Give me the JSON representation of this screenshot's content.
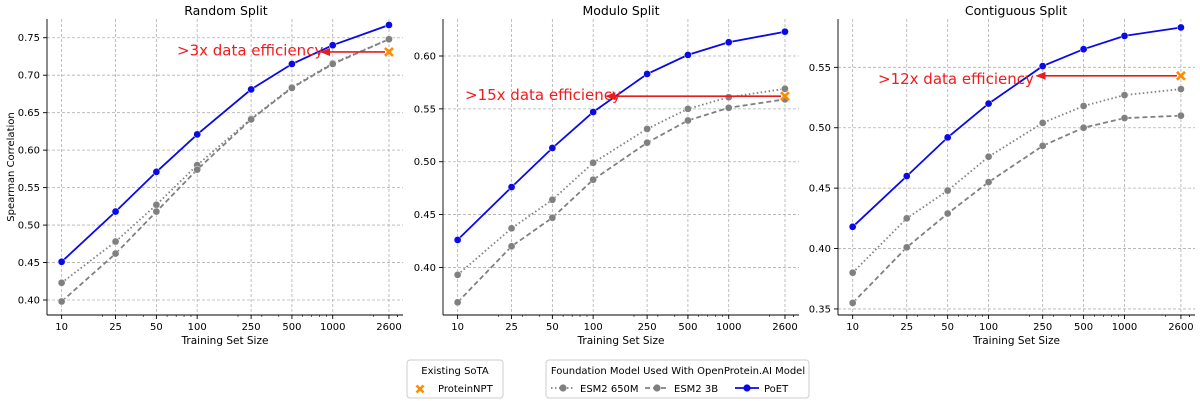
{
  "chart_data": [
    {
      "type": "line",
      "title": "Random Split",
      "xlabel": "Training Set Size",
      "ylabel": "Spearman Correlation",
      "xscale": "log",
      "x": [
        10,
        25,
        50,
        100,
        250,
        500,
        1000,
        2600
      ],
      "xticklabels": [
        "10",
        "25",
        "50",
        "100",
        "250",
        "500",
        "1000",
        "2600"
      ],
      "ylim": [
        0.38,
        0.775
      ],
      "yticks": [
        0.4,
        0.45,
        0.5,
        0.55,
        0.6,
        0.65,
        0.7,
        0.75
      ],
      "yticklabels": [
        "0.40",
        "0.45",
        "0.50",
        "0.55",
        "0.60",
        "0.65",
        "0.70",
        "0.75"
      ],
      "grid": true,
      "series": [
        {
          "name": "ESM2 650M",
          "values": [
            0.423,
            0.478,
            0.527,
            0.58,
            0.642,
            0.684,
            0.716,
            0.748
          ]
        },
        {
          "name": "ESM2 3B",
          "values": [
            0.398,
            0.462,
            0.518,
            0.574,
            0.641,
            0.683,
            0.715,
            0.748
          ]
        },
        {
          "name": "PoET",
          "values": [
            0.451,
            0.518,
            0.571,
            0.621,
            0.681,
            0.715,
            0.74,
            0.767
          ]
        }
      ],
      "sota": {
        "name": "ProteinNPT",
        "x": 2600,
        "y": 0.731
      },
      "annotation": {
        "text": ">3x data efficiency",
        "arrow_from_x": 2600,
        "arrow_to_x": 820,
        "arrow_y": 0.731
      }
    },
    {
      "type": "line",
      "title": "Modulo Split",
      "xlabel": "Training Set Size",
      "ylabel": "",
      "xscale": "log",
      "x": [
        10,
        25,
        50,
        100,
        250,
        500,
        1000,
        2600
      ],
      "xticklabels": [
        "10",
        "25",
        "50",
        "100",
        "250",
        "500",
        "1000",
        "2600"
      ],
      "ylim": [
        0.355,
        0.635
      ],
      "yticks": [
        0.4,
        0.45,
        0.5,
        0.55,
        0.6
      ],
      "yticklabels": [
        "0.40",
        "0.45",
        "0.50",
        "0.55",
        "0.60"
      ],
      "grid": true,
      "series": [
        {
          "name": "ESM2 650M",
          "values": [
            0.393,
            0.437,
            0.464,
            0.499,
            0.531,
            0.55,
            0.561,
            0.569
          ]
        },
        {
          "name": "ESM2 3B",
          "values": [
            0.367,
            0.42,
            0.447,
            0.483,
            0.518,
            0.539,
            0.551,
            0.559
          ]
        },
        {
          "name": "PoET",
          "values": [
            0.426,
            0.476,
            0.513,
            0.547,
            0.583,
            0.601,
            0.613,
            0.623
          ]
        }
      ],
      "sota": {
        "name": "ProteinNPT",
        "x": 2600,
        "y": 0.562
      },
      "annotation": {
        "text": ">15x data efficiency",
        "arrow_from_x": 2600,
        "arrow_to_x": 125,
        "arrow_y": 0.562
      }
    },
    {
      "type": "line",
      "title": "Contiguous Split",
      "xlabel": "Training Set Size",
      "ylabel": "",
      "xscale": "log",
      "x": [
        10,
        25,
        50,
        100,
        250,
        500,
        1000,
        2600
      ],
      "xticklabels": [
        "10",
        "25",
        "50",
        "100",
        "250",
        "500",
        "1000",
        "2600"
      ],
      "ylim": [
        0.345,
        0.59
      ],
      "yticks": [
        0.35,
        0.4,
        0.45,
        0.5,
        0.55
      ],
      "yticklabels": [
        "0.35",
        "0.40",
        "0.45",
        "0.50",
        "0.55"
      ],
      "grid": true,
      "series": [
        {
          "name": "ESM2 650M",
          "values": [
            0.38,
            0.425,
            0.448,
            0.476,
            0.504,
            0.518,
            0.527,
            0.532
          ]
        },
        {
          "name": "ESM2 3B",
          "values": [
            0.355,
            0.401,
            0.429,
            0.455,
            0.485,
            0.5,
            0.508,
            0.51
          ]
        },
        {
          "name": "PoET",
          "values": [
            0.418,
            0.46,
            0.492,
            0.52,
            0.551,
            0.565,
            0.576,
            0.583
          ]
        }
      ],
      "sota": {
        "name": "ProteinNPT",
        "x": 2600,
        "y": 0.543
      },
      "annotation": {
        "text": ">12x data efficiency",
        "arrow_from_x": 2600,
        "arrow_to_x": 225,
        "arrow_y": 0.543
      }
    }
  ],
  "legends": {
    "sota": {
      "title": "Existing SoTA",
      "entries": [
        "ProteinNPT"
      ]
    },
    "models": {
      "title": "Foundation Model Used With OpenProtein.AI Model",
      "entries": [
        "ESM2 650M",
        "ESM2 3B",
        "PoET"
      ]
    }
  },
  "colors": {
    "poet": "#0a0ae6",
    "esm": "#808080",
    "sota": "#ff8c00",
    "arrow": "#e81c1c",
    "annotation": "#ef1c1c",
    "grid": "#b0b0b0"
  }
}
